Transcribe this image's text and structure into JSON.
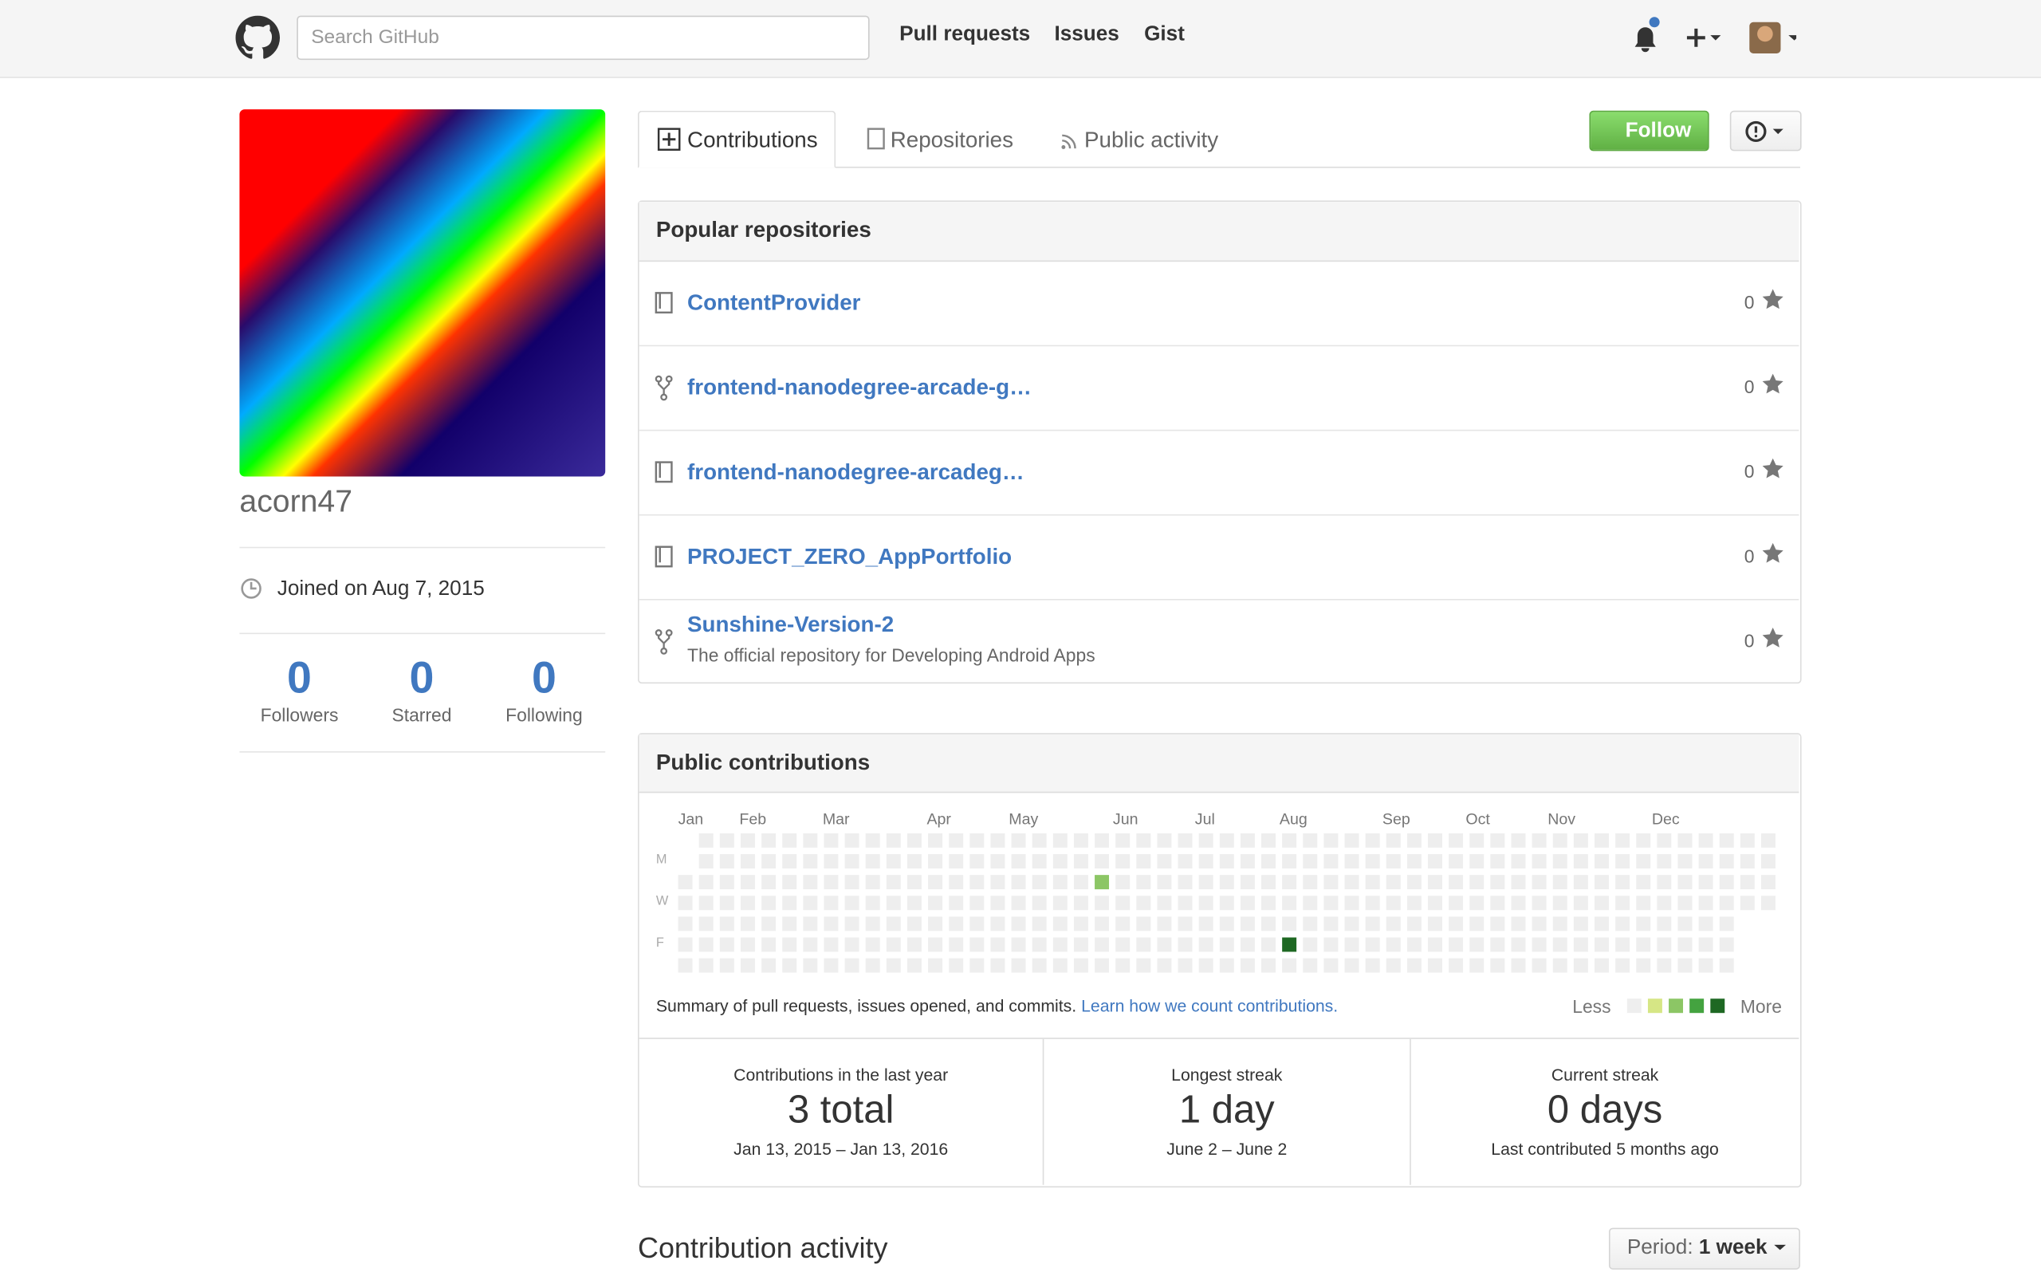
{
  "header": {
    "search_placeholder": "Search GitHub",
    "nav": [
      "Pull requests",
      "Issues",
      "Gist"
    ]
  },
  "profile": {
    "username": "acorn47",
    "joined": "Joined on Aug 7, 2015",
    "stats": [
      {
        "value": "0",
        "label": "Followers"
      },
      {
        "value": "0",
        "label": "Starred"
      },
      {
        "value": "0",
        "label": "Following"
      }
    ]
  },
  "tabs": [
    "Contributions",
    "Repositories",
    "Public activity"
  ],
  "follow_button": "Follow",
  "popular_repositories": {
    "title": "Popular repositories",
    "repos": [
      {
        "name": "ContentProvider",
        "stars": "0",
        "fork": false
      },
      {
        "name": "frontend-nanodegree-arcade-g…",
        "stars": "0",
        "fork": true
      },
      {
        "name": "frontend-nanodegree-arcadeg…",
        "stars": "0",
        "fork": false
      },
      {
        "name": "PROJECT_ZERO_AppPortfolio",
        "stars": "0",
        "fork": false
      },
      {
        "name": "Sunshine-Version-2",
        "description": "The official repository for Developing Android Apps",
        "stars": "0",
        "fork": true
      }
    ]
  },
  "public_contributions": {
    "title": "Public contributions",
    "months": [
      "Jan",
      "Feb",
      "Mar",
      "Apr",
      "May",
      "Jun",
      "Jul",
      "Aug",
      "Sep",
      "Oct",
      "Nov",
      "Dec"
    ],
    "days": [
      "M",
      "W",
      "F"
    ],
    "summary": "Summary of pull requests, issues opened, and commits.",
    "link": "Learn how we count contributions.",
    "legend_less": "Less",
    "legend_more": "More",
    "stats": [
      {
        "caption": "Contributions in the last year",
        "value": "3 total",
        "range": "Jan 13, 2015 – Jan 13, 2016"
      },
      {
        "caption": "Longest streak",
        "value": "1 day",
        "range": "June 2 – June 2"
      },
      {
        "caption": "Current streak",
        "value": "0 days",
        "range": "Last contributed 5 months ago"
      }
    ]
  },
  "activity": {
    "title": "Contribution activity",
    "period_label": "Period:",
    "period_value": "1 week"
  }
}
